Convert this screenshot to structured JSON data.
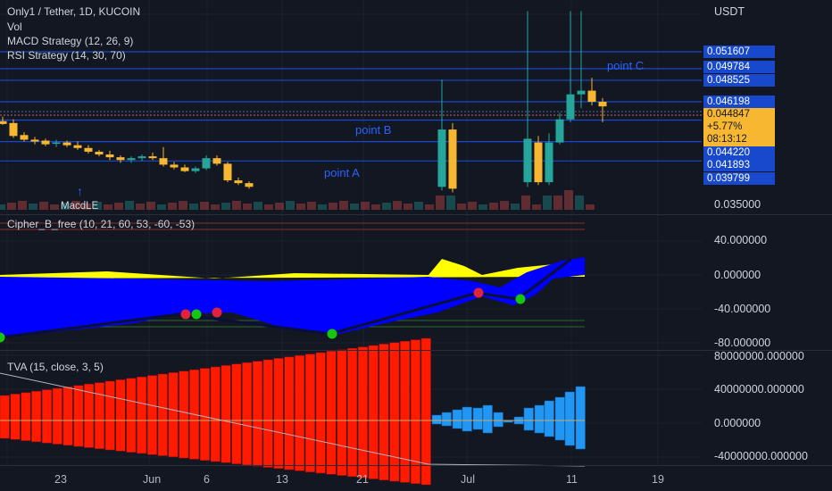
{
  "header": {
    "symbol": "Only1 / Tether, 1D, KUCOIN",
    "studies": [
      "Vol",
      "MACD Strategy (12, 26, 9)",
      "RSI Strategy (14, 30, 70)"
    ]
  },
  "price_scale": {
    "currency": "USDT",
    "badges": [
      {
        "value": "0.051607",
        "y": 0.051607
      },
      {
        "value": "0.049784",
        "y": 0.049784
      },
      {
        "value": "0.048525",
        "y": 0.048525
      },
      {
        "value": "0.046198",
        "y": 0.046198
      },
      {
        "value": "0.044220",
        "y": 0.04422
      },
      {
        "value": "0.041893",
        "y": 0.041893
      },
      {
        "value": "0.039799",
        "y": 0.039799
      }
    ],
    "last_price": {
      "value": "0.044847",
      "change": "+5.77%",
      "countdown": "08:13:12"
    },
    "bottom_tick": "0.035000"
  },
  "annotations": [
    {
      "text": "point C",
      "price": 0.0501
    },
    {
      "text": "point B",
      "price": 0.0432
    },
    {
      "text": "point A",
      "price": 0.0406
    },
    {
      "text": "MacdLE",
      "price": 0.0347
    }
  ],
  "cipher": {
    "title": "Cipher_B_free (10, 21, 60, 53, -60, -53)",
    "ticks": [
      "40.000000",
      "0.000000",
      "-40.000000",
      "-80.000000"
    ]
  },
  "tva": {
    "title": "TVA (15, close, 3, 5)",
    "ticks": [
      "80000000.000000",
      "40000000.000000",
      "0.000000",
      "-40000000.000000"
    ]
  },
  "time_axis": [
    "23",
    "Jun",
    "6",
    "13",
    "21",
    "Jul",
    "11",
    "19"
  ],
  "colors": {
    "background": "#131722",
    "up": "#26a69a",
    "down": "#f7b731",
    "line": "#1848cc",
    "cipher_fill": "#0000ff",
    "cipher_yellow": "#ffff00",
    "tva_red": "#ff1a00",
    "tva_blue": "#2196f3"
  },
  "chart_data": {
    "type": "candlestick",
    "x_unit": "day index (0 = first visible daily candle)",
    "candles": [
      {
        "x": 0,
        "o": 0.0441,
        "h": 0.0446,
        "l": 0.0437,
        "c": 0.0438
      },
      {
        "x": 1,
        "o": 0.0439,
        "h": 0.0443,
        "l": 0.0423,
        "c": 0.0425
      },
      {
        "x": 2,
        "o": 0.0426,
        "h": 0.0429,
        "l": 0.0419,
        "c": 0.0421
      },
      {
        "x": 3,
        "o": 0.0421,
        "h": 0.0424,
        "l": 0.0416,
        "c": 0.0419
      },
      {
        "x": 4,
        "o": 0.042,
        "h": 0.0422,
        "l": 0.0414,
        "c": 0.0416
      },
      {
        "x": 5,
        "o": 0.0417,
        "h": 0.0421,
        "l": 0.0413,
        "c": 0.0418
      },
      {
        "x": 6,
        "o": 0.0418,
        "h": 0.042,
        "l": 0.0413,
        "c": 0.0415
      },
      {
        "x": 7,
        "o": 0.0415,
        "h": 0.0419,
        "l": 0.041,
        "c": 0.0412
      },
      {
        "x": 8,
        "o": 0.0412,
        "h": 0.0415,
        "l": 0.0406,
        "c": 0.0408
      },
      {
        "x": 9,
        "o": 0.0408,
        "h": 0.041,
        "l": 0.0403,
        "c": 0.0405
      },
      {
        "x": 10,
        "o": 0.0405,
        "h": 0.0409,
        "l": 0.0399,
        "c": 0.0402
      },
      {
        "x": 11,
        "o": 0.0402,
        "h": 0.0404,
        "l": 0.0396,
        "c": 0.0399
      },
      {
        "x": 12,
        "o": 0.0399,
        "h": 0.0403,
        "l": 0.0396,
        "c": 0.0401
      },
      {
        "x": 13,
        "o": 0.0401,
        "h": 0.0405,
        "l": 0.0398,
        "c": 0.0403
      },
      {
        "x": 14,
        "o": 0.0403,
        "h": 0.0407,
        "l": 0.0399,
        "c": 0.0401
      },
      {
        "x": 15,
        "o": 0.0401,
        "h": 0.0413,
        "l": 0.0392,
        "c": 0.0394
      },
      {
        "x": 16,
        "o": 0.0394,
        "h": 0.0397,
        "l": 0.0389,
        "c": 0.0391
      },
      {
        "x": 17,
        "o": 0.0391,
        "h": 0.0394,
        "l": 0.0386,
        "c": 0.0387
      },
      {
        "x": 18,
        "o": 0.0387,
        "h": 0.0392,
        "l": 0.0385,
        "c": 0.039
      },
      {
        "x": 19,
        "o": 0.039,
        "h": 0.0404,
        "l": 0.0388,
        "c": 0.0401
      },
      {
        "x": 20,
        "o": 0.0401,
        "h": 0.0404,
        "l": 0.0393,
        "c": 0.0395
      },
      {
        "x": 21,
        "o": 0.0395,
        "h": 0.0397,
        "l": 0.0375,
        "c": 0.0377
      },
      {
        "x": 22,
        "o": 0.0377,
        "h": 0.038,
        "l": 0.0372,
        "c": 0.0374
      },
      {
        "x": 23,
        "o": 0.0374,
        "h": 0.0376,
        "l": 0.0368,
        "c": 0.037
      },
      {
        "x": 41,
        "o": 0.037,
        "h": 0.0486,
        "l": 0.0366,
        "c": 0.0432
      },
      {
        "x": 42,
        "o": 0.0432,
        "h": 0.0439,
        "l": 0.0364,
        "c": 0.0368
      },
      {
        "x": 49,
        "o": 0.0375,
        "h": 0.056,
        "l": 0.037,
        "c": 0.0422
      },
      {
        "x": 50,
        "o": 0.0418,
        "h": 0.0425,
        "l": 0.0372,
        "c": 0.0375
      },
      {
        "x": 51,
        "o": 0.0375,
        "h": 0.0428,
        "l": 0.0372,
        "c": 0.0418
      },
      {
        "x": 52,
        "o": 0.0418,
        "h": 0.045,
        "l": 0.0416,
        "c": 0.0443
      },
      {
        "x": 53,
        "o": 0.0443,
        "h": 0.056,
        "l": 0.044,
        "c": 0.047
      },
      {
        "x": 54,
        "o": 0.047,
        "h": 0.056,
        "l": 0.0455,
        "c": 0.0474
      },
      {
        "x": 55,
        "o": 0.0474,
        "h": 0.0488,
        "l": 0.0458,
        "c": 0.0462
      },
      {
        "x": 56,
        "o": 0.0462,
        "h": 0.0466,
        "l": 0.044,
        "c": 0.0457
      }
    ]
  }
}
